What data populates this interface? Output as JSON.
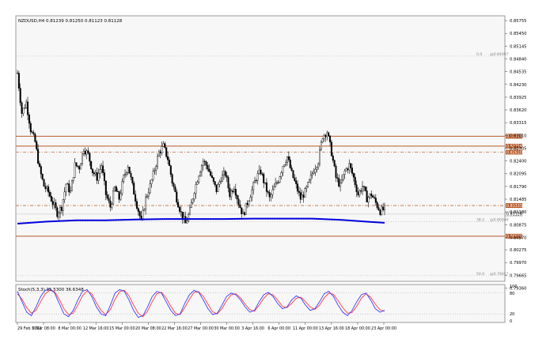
{
  "colors": {
    "background": "#ffffff",
    "plot_bg": "#f7f7f7",
    "grid": "#c8c8c8",
    "candle": "#000000",
    "ma": "#0000dd",
    "level_solid": "#b85a2a",
    "level_dash": "#c06a3a",
    "stoch_main": "#3a3aff",
    "stoch_signal": "#ff3a3a"
  },
  "chart_title": "NZDUSD,H4  0.81239 0.81250 0.81123 0.81128",
  "stoch_title": "Stoch(5,3,3) 35.5300 36.6348",
  "chart_data": {
    "type": "candlestick",
    "symbol": "NZDUSD",
    "timeframe": "H4",
    "ohlc_header": [
      0.81239,
      0.8125,
      0.81123,
      0.81128
    ],
    "ylim": [
      0.7952,
      0.8587
    ],
    "y_ticks": [
      "0.85755",
      "0.85450",
      "0.85145",
      "0.84840",
      "0.84535",
      "0.84230",
      "0.83925",
      "0.83620",
      "0.83315",
      "0.83010",
      "0.82705",
      "0.82400",
      "0.82095",
      "0.81790",
      "0.81485",
      "0.81180",
      "0.80875",
      "0.80570",
      "0.80275",
      "0.79970",
      "0.79665",
      "0.79360"
    ],
    "x_ticks": [
      "29 Feb 2012",
      "5 Mar 08:00",
      "8 Mar 00:00",
      "12 Mar 16:00",
      "15 Mar 00:00",
      "20 Mar 08:00",
      "22 Mar 16:00",
      "27 Mar 00:00",
      "30 Mar 00:00",
      "3 Apr 16:00",
      "6 Apr 00:00",
      "11 Apr 00:00",
      "13 Apr 16:00",
      "18 Apr 00:00",
      "23 Apr 00:00"
    ],
    "close_path": [
      [
        0,
        0.845
      ],
      [
        3,
        0.8355
      ],
      [
        6,
        0.838
      ],
      [
        9,
        0.8315
      ],
      [
        12,
        0.8285
      ],
      [
        15,
        0.822
      ],
      [
        18,
        0.818
      ],
      [
        21,
        0.8165
      ],
      [
        24,
        0.814
      ],
      [
        27,
        0.8115
      ],
      [
        30,
        0.813
      ],
      [
        33,
        0.8185
      ],
      [
        36,
        0.8165
      ],
      [
        39,
        0.823
      ],
      [
        42,
        0.8225
      ],
      [
        45,
        0.827
      ],
      [
        48,
        0.8255
      ],
      [
        51,
        0.8215
      ],
      [
        54,
        0.82
      ],
      [
        57,
        0.823
      ],
      [
        60,
        0.816
      ],
      [
        63,
        0.813
      ],
      [
        66,
        0.8175
      ],
      [
        69,
        0.815
      ],
      [
        72,
        0.82
      ],
      [
        75,
        0.823
      ],
      [
        78,
        0.818
      ],
      [
        81,
        0.8135
      ],
      [
        84,
        0.8095
      ],
      [
        87,
        0.815
      ],
      [
        90,
        0.818
      ],
      [
        93,
        0.822
      ],
      [
        96,
        0.826
      ],
      [
        99,
        0.8275
      ],
      [
        102,
        0.8245
      ],
      [
        105,
        0.819
      ],
      [
        108,
        0.815
      ],
      [
        111,
        0.8115
      ],
      [
        114,
        0.809
      ],
      [
        117,
        0.812
      ],
      [
        120,
        0.817
      ],
      [
        123,
        0.821
      ],
      [
        126,
        0.824
      ],
      [
        129,
        0.8225
      ],
      [
        132,
        0.8195
      ],
      [
        135,
        0.817
      ],
      [
        138,
        0.82
      ],
      [
        141,
        0.821
      ],
      [
        144,
        0.816
      ],
      [
        147,
        0.818
      ],
      [
        150,
        0.814
      ],
      [
        153,
        0.811
      ],
      [
        156,
        0.814
      ],
      [
        159,
        0.817
      ],
      [
        162,
        0.82
      ],
      [
        165,
        0.8215
      ],
      [
        168,
        0.818
      ],
      [
        171,
        0.815
      ],
      [
        174,
        0.8175
      ],
      [
        177,
        0.8195
      ],
      [
        180,
        0.823
      ],
      [
        183,
        0.825
      ],
      [
        186,
        0.821
      ],
      [
        189,
        0.818
      ],
      [
        192,
        0.815
      ],
      [
        195,
        0.8165
      ],
      [
        198,
        0.819
      ],
      [
        201,
        0.822
      ],
      [
        204,
        0.824
      ],
      [
        207,
        0.83
      ],
      [
        210,
        0.831
      ],
      [
        213,
        0.826
      ],
      [
        216,
        0.82
      ],
      [
        219,
        0.818
      ],
      [
        222,
        0.8215
      ],
      [
        225,
        0.823
      ],
      [
        228,
        0.82
      ],
      [
        231,
        0.816
      ],
      [
        234,
        0.818
      ],
      [
        237,
        0.815
      ],
      [
        240,
        0.816
      ],
      [
        243,
        0.814
      ],
      [
        246,
        0.812
      ],
      [
        249,
        0.8125
      ]
    ],
    "moving_average": [
      [
        0,
        0.809
      ],
      [
        20,
        0.8095
      ],
      [
        40,
        0.8098
      ],
      [
        60,
        0.8098
      ],
      [
        80,
        0.81
      ],
      [
        100,
        0.8101
      ],
      [
        120,
        0.8101
      ],
      [
        140,
        0.8101
      ],
      [
        160,
        0.8102
      ],
      [
        180,
        0.8102
      ],
      [
        200,
        0.8102
      ],
      [
        220,
        0.8099
      ],
      [
        240,
        0.8094
      ],
      [
        249,
        0.8092
      ]
    ],
    "levels": [
      {
        "label": "0.82990",
        "value": 0.8299,
        "style": "solid"
      },
      {
        "label": "0.82754",
        "value": 0.82754,
        "style": "solid"
      },
      {
        "label": "0.82610",
        "value": 0.8261,
        "style": "dashed"
      },
      {
        "label": "0.81333",
        "value": 0.81333,
        "style": "dashed"
      },
      {
        "label": "0.80600",
        "value": 0.806,
        "style": "solid"
      }
    ],
    "fib": [
      {
        "label": "0.0",
        "value_label": "@0.84907",
        "value": 0.84907
      },
      {
        "label": "38.2",
        "value_label": "@0.80948",
        "value": 0.80948
      },
      {
        "label": "50.0",
        "value_label": "@0.79657",
        "value": 0.79657
      }
    ],
    "current_price_label": "0.81128",
    "stoch": {
      "ylim": [
        0,
        100
      ],
      "ticks": [
        "100",
        "80",
        "20",
        "0"
      ],
      "levels": [
        80,
        20
      ],
      "main": [
        85,
        55,
        25,
        15,
        40,
        70,
        88,
        92,
        80,
        50,
        20,
        12,
        30,
        60,
        85,
        90,
        70,
        40,
        20,
        15,
        45,
        80,
        90,
        85,
        60,
        30,
        10,
        15,
        40,
        70,
        85,
        80,
        55,
        30,
        15,
        20,
        50,
        75,
        88,
        82,
        60,
        35,
        18,
        22,
        45,
        70,
        80,
        75,
        60,
        40,
        25,
        30,
        55,
        75,
        82,
        70,
        50,
        35,
        40,
        60,
        72,
        65,
        45,
        30,
        35,
        55,
        78,
        85,
        70,
        45,
        25,
        15,
        30,
        55,
        75,
        80,
        60,
        35,
        25,
        30
      ],
      "signal": [
        78,
        62,
        38,
        22,
        30,
        55,
        78,
        88,
        84,
        62,
        35,
        18,
        22,
        45,
        72,
        86,
        78,
        52,
        30,
        18,
        32,
        62,
        84,
        88,
        72,
        45,
        22,
        12,
        28,
        55,
        78,
        82,
        66,
        42,
        22,
        18,
        38,
        62,
        82,
        84,
        70,
        48,
        26,
        20,
        35,
        58,
        75,
        78,
        66,
        48,
        32,
        28,
        45,
        65,
        78,
        75,
        60,
        42,
        38,
        50,
        65,
        68,
        55,
        40,
        33,
        45,
        66,
        80,
        76,
        58,
        38,
        22,
        24,
        42,
        65,
        78,
        68,
        48,
        32,
        28
      ]
    }
  }
}
